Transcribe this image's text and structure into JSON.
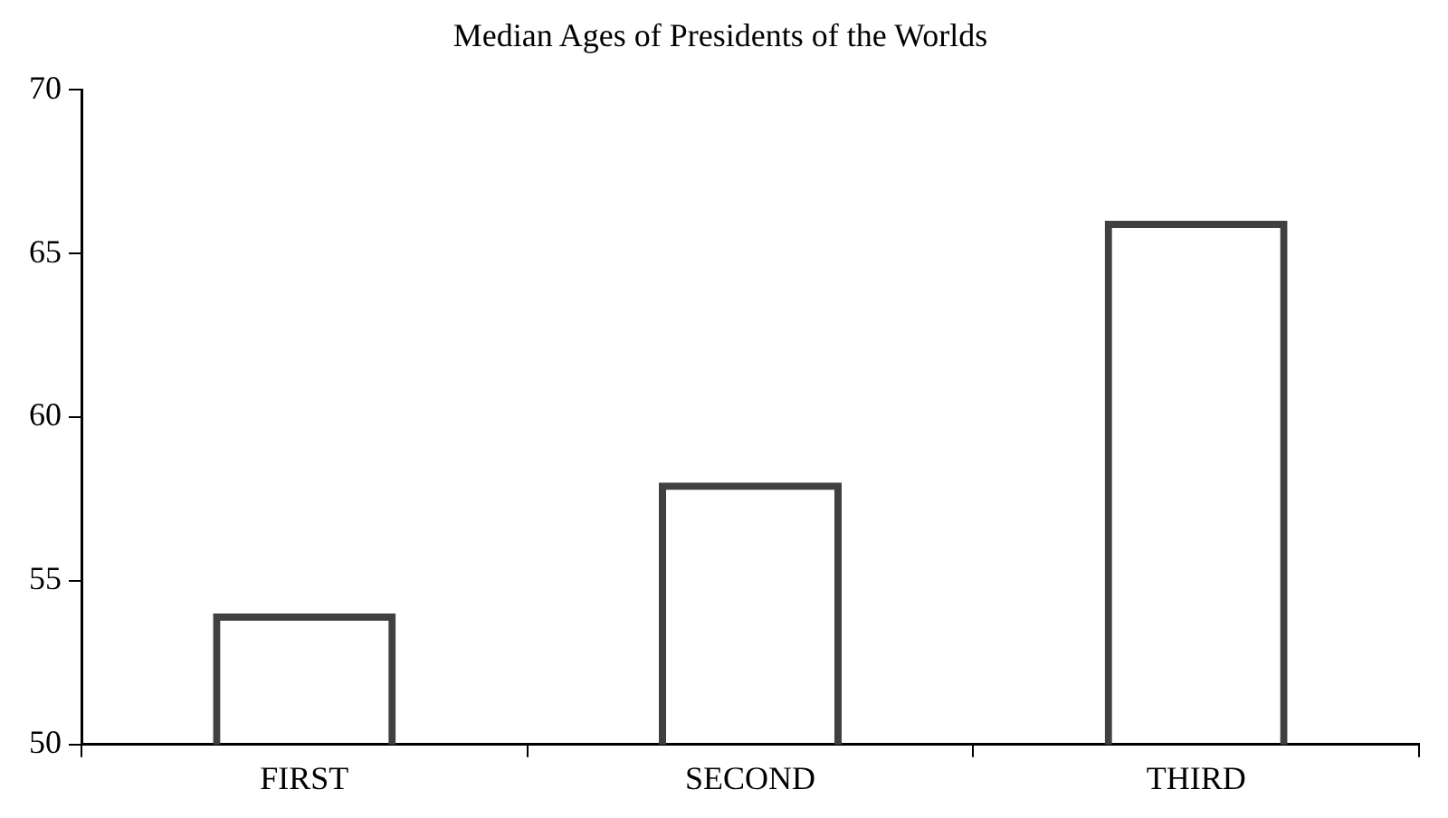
{
  "chart_data": {
    "type": "bar",
    "title": "Median Ages of Presidents of the Worlds",
    "categories": [
      "FIRST",
      "SECOND",
      "THIRD"
    ],
    "values": [
      54,
      58,
      66
    ],
    "color": "#404040",
    "ylim": [
      50,
      70
    ],
    "yticks": [
      50,
      55,
      60,
      65,
      70
    ]
  }
}
